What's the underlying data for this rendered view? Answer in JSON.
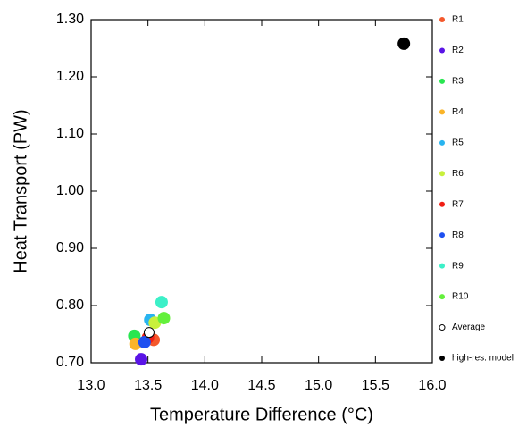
{
  "chart_data": {
    "type": "scatter",
    "xlabel": "Temperature Difference (°C)",
    "ylabel": "Heat Transport (PW)",
    "xlim": [
      13.0,
      16.0
    ],
    "ylim": [
      0.7,
      1.3
    ],
    "xticks": [
      {
        "value": 13.0,
        "label": "13.0"
      },
      {
        "value": 13.5,
        "label": "13.5"
      },
      {
        "value": 14.0,
        "label": "14.0"
      },
      {
        "value": 14.5,
        "label": "14.5"
      },
      {
        "value": 15.0,
        "label": "15.0"
      },
      {
        "value": 15.5,
        "label": "15.5"
      },
      {
        "value": 16.0,
        "label": "16.0"
      }
    ],
    "yticks": [
      {
        "value": 0.7,
        "label": "0.70"
      },
      {
        "value": 0.8,
        "label": "0.80"
      },
      {
        "value": 0.9,
        "label": "0.90"
      },
      {
        "value": 1.0,
        "label": "1.00"
      },
      {
        "value": 1.1,
        "label": "1.10"
      },
      {
        "value": 1.2,
        "label": "1.20"
      },
      {
        "value": 1.3,
        "label": "1.30"
      }
    ],
    "legend": "right",
    "series": [
      {
        "name": "R1",
        "color": "#f4582c",
        "x": [
          13.55
        ],
        "values": [
          0.74
        ]
      },
      {
        "name": "R2",
        "color": "#5a14e6",
        "x": [
          13.44
        ],
        "values": [
          0.706
        ]
      },
      {
        "name": "R3",
        "color": "#28e650",
        "x": [
          13.38
        ],
        "values": [
          0.747
        ]
      },
      {
        "name": "R4",
        "color": "#fab428",
        "x": [
          13.39
        ],
        "values": [
          0.733
        ]
      },
      {
        "name": "R5",
        "color": "#28b4f0",
        "x": [
          13.52
        ],
        "values": [
          0.775
        ]
      },
      {
        "name": "R6",
        "color": "#c8f03c",
        "x": [
          13.56
        ],
        "values": [
          0.77
        ]
      },
      {
        "name": "R7",
        "color": "#f01e14",
        "x": [
          13.5
        ],
        "values": [
          0.744
        ]
      },
      {
        "name": "R8",
        "color": "#1e50f0",
        "x": [
          13.47
        ],
        "values": [
          0.736
        ]
      },
      {
        "name": "R9",
        "color": "#3cf0c8",
        "x": [
          13.62
        ],
        "values": [
          0.806
        ]
      },
      {
        "name": "R10",
        "color": "#64f03c",
        "x": [
          13.64
        ],
        "values": [
          0.778
        ]
      },
      {
        "name": "Average",
        "color": "#000000",
        "marker": "hollow",
        "x": [
          13.51
        ],
        "values": [
          0.753
        ]
      },
      {
        "name": "high-res. model",
        "color": "#000000",
        "x": [
          15.75
        ],
        "values": [
          1.258
        ]
      }
    ]
  }
}
